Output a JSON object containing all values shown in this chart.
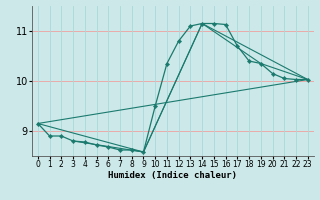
{
  "xlabel": "Humidex (Indice chaleur)",
  "bg_color": "#cce8e8",
  "grid_color_h": "#f0a0a0",
  "grid_color_v": "#a8d8d8",
  "line_color": "#1a7a6e",
  "xlim": [
    -0.5,
    23.5
  ],
  "ylim": [
    8.5,
    11.5
  ],
  "yticks": [
    9,
    10,
    11
  ],
  "xticks": [
    0,
    1,
    2,
    3,
    4,
    5,
    6,
    7,
    8,
    9,
    10,
    11,
    12,
    13,
    14,
    15,
    16,
    17,
    18,
    19,
    20,
    21,
    22,
    23
  ],
  "series1_x": [
    0,
    1,
    2,
    3,
    4,
    5,
    6,
    7,
    8,
    9,
    10,
    11,
    12,
    13,
    14,
    15,
    16,
    17,
    18,
    19,
    20,
    21,
    22,
    23
  ],
  "series1_y": [
    9.15,
    8.9,
    8.9,
    8.8,
    8.78,
    8.72,
    8.68,
    8.62,
    8.62,
    8.58,
    9.5,
    10.35,
    10.8,
    11.1,
    11.15,
    11.15,
    11.13,
    10.7,
    10.4,
    10.35,
    10.15,
    10.05,
    10.03,
    10.03
  ],
  "series2_x": [
    0,
    9,
    14,
    23
  ],
  "series2_y": [
    9.15,
    8.58,
    11.15,
    10.03
  ],
  "series3_x": [
    0,
    23
  ],
  "series3_y": [
    9.15,
    10.03
  ],
  "series4_x": [
    3,
    9,
    14,
    19,
    23
  ],
  "series4_y": [
    8.8,
    8.58,
    11.15,
    10.35,
    10.03
  ]
}
